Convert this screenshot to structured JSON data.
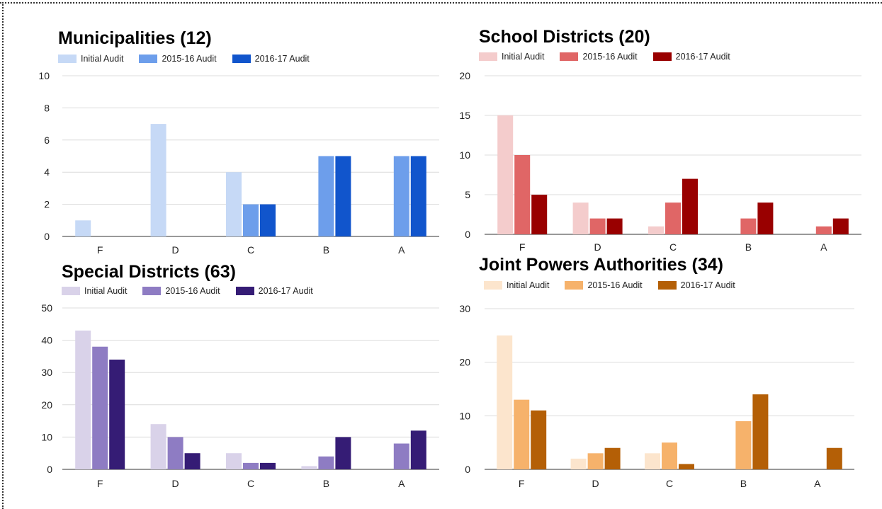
{
  "chart_data": [
    {
      "type": "bar",
      "title": "Municipalities (12)",
      "categories": [
        "F",
        "D",
        "C",
        "B",
        "A"
      ],
      "series": [
        {
          "name": "Initial Audit",
          "color": "#c6d9f6",
          "values": [
            1,
            7,
            4,
            0,
            0
          ]
        },
        {
          "name": "2015-16 Audit",
          "color": "#6d9eeb",
          "values": [
            0,
            0,
            2,
            5,
            5
          ]
        },
        {
          "name": "2016-17 Audit",
          "color": "#1155cc",
          "values": [
            0,
            0,
            2,
            5,
            5
          ]
        }
      ],
      "ylim": [
        0,
        10
      ],
      "yticks": [
        0,
        2,
        4,
        6,
        8,
        10
      ],
      "grid": true,
      "legend": "top-left"
    },
    {
      "type": "bar",
      "title": "School Districts (20)",
      "categories": [
        "F",
        "D",
        "C",
        "B",
        "A"
      ],
      "series": [
        {
          "name": "Initial Audit",
          "color": "#f4cccc",
          "values": [
            15,
            4,
            1,
            0,
            0
          ]
        },
        {
          "name": "2015-16 Audit",
          "color": "#e06666",
          "values": [
            10,
            2,
            4,
            2,
            1
          ]
        },
        {
          "name": "2016-17 Audit",
          "color": "#990000",
          "values": [
            5,
            2,
            7,
            4,
            2
          ]
        }
      ],
      "ylim": [
        0,
        20
      ],
      "yticks": [
        0,
        5,
        10,
        15,
        20
      ],
      "grid": true,
      "legend": "top-left"
    },
    {
      "type": "bar",
      "title": "Special Districts (63)",
      "categories": [
        "F",
        "D",
        "C",
        "B",
        "A"
      ],
      "series": [
        {
          "name": "Initial Audit",
          "color": "#d9d2e9",
          "values": [
            43,
            14,
            5,
            1,
            0
          ]
        },
        {
          "name": "2015-16 Audit",
          "color": "#8e7cc3",
          "values": [
            38,
            10,
            2,
            4,
            8
          ]
        },
        {
          "name": "2016-17 Audit",
          "color": "#351c75",
          "values": [
            34,
            5,
            2,
            10,
            12
          ]
        }
      ],
      "ylim": [
        0,
        50
      ],
      "yticks": [
        0,
        10,
        20,
        30,
        40,
        50
      ],
      "grid": true,
      "legend": "top-left"
    },
    {
      "type": "bar",
      "title": "Joint Powers Authorities (34)",
      "categories": [
        "F",
        "D",
        "C",
        "B",
        "A"
      ],
      "series": [
        {
          "name": "Initial Audit",
          "color": "#fce5cd",
          "values": [
            25,
            2,
            3,
            0,
            0
          ]
        },
        {
          "name": "2015-16 Audit",
          "color": "#f6b26b",
          "values": [
            13,
            3,
            5,
            9,
            0
          ]
        },
        {
          "name": "2016-17 Audit",
          "color": "#b45f06",
          "values": [
            11,
            4,
            1,
            14,
            4
          ]
        }
      ],
      "ylim": [
        0,
        30
      ],
      "yticks": [
        0,
        10,
        20,
        30
      ],
      "grid": true,
      "legend": "top-left"
    }
  ]
}
